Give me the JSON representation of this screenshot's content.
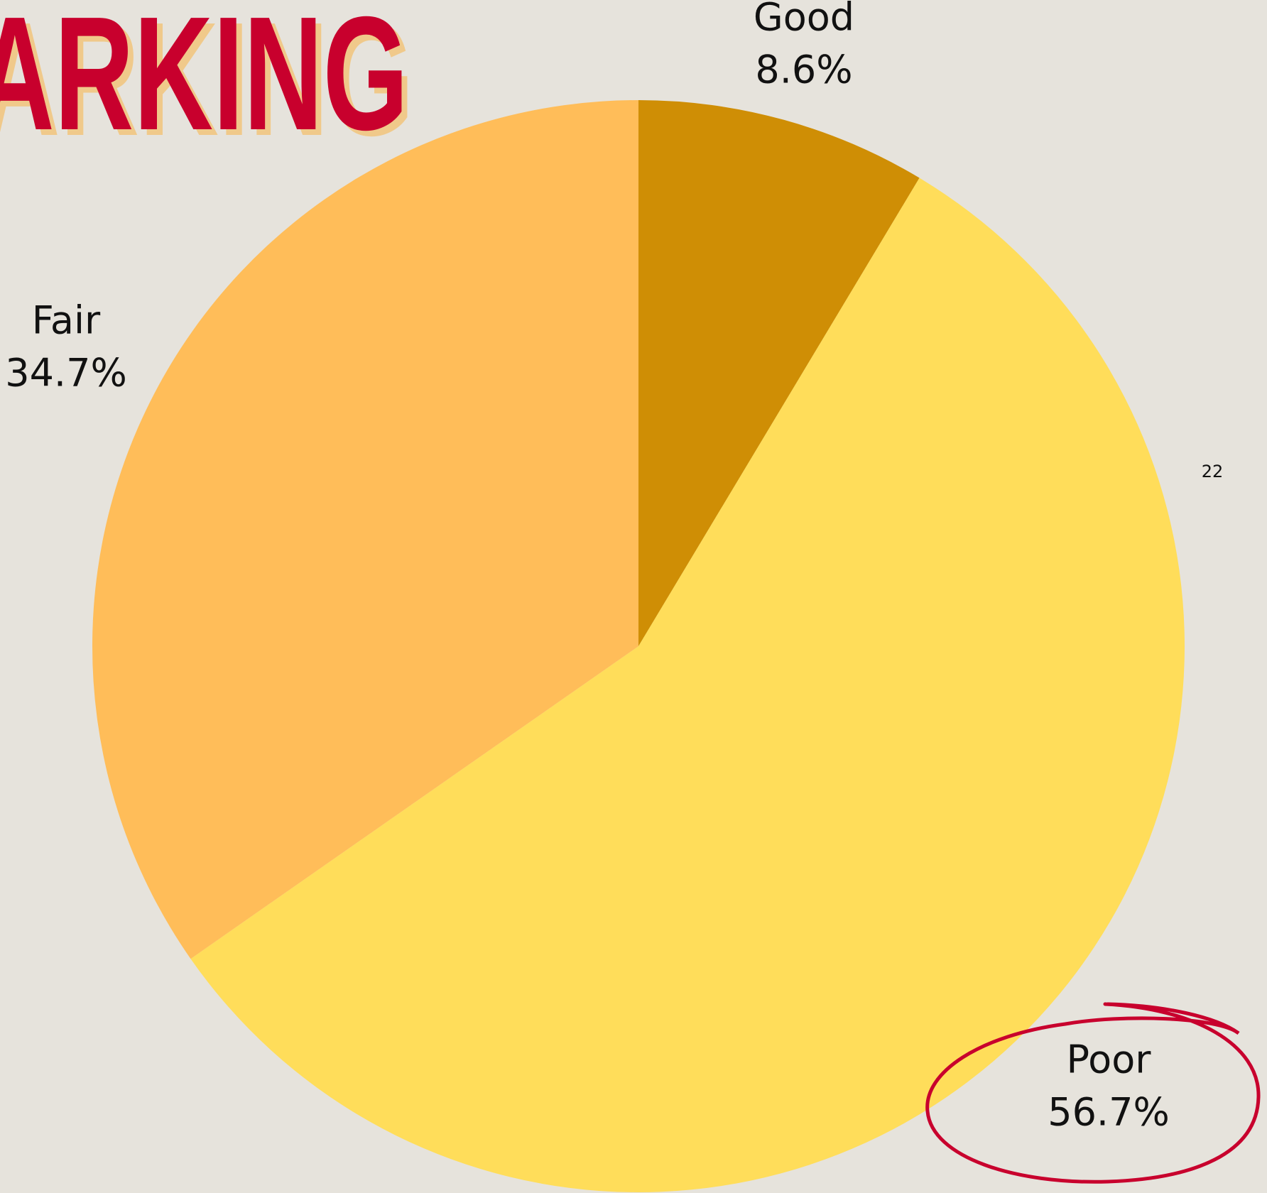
{
  "chart_data": {
    "type": "pie",
    "title": "ARKING",
    "categories": [
      "Good",
      "Poor",
      "Fair"
    ],
    "values": [
      8.6,
      56.7,
      34.7
    ],
    "value_labels": [
      "8.6%",
      "56.7%",
      "34.7%"
    ],
    "colors": [
      "#cf8e05",
      "#ffdd5a",
      "#ffbd59"
    ],
    "page_number": "22"
  }
}
